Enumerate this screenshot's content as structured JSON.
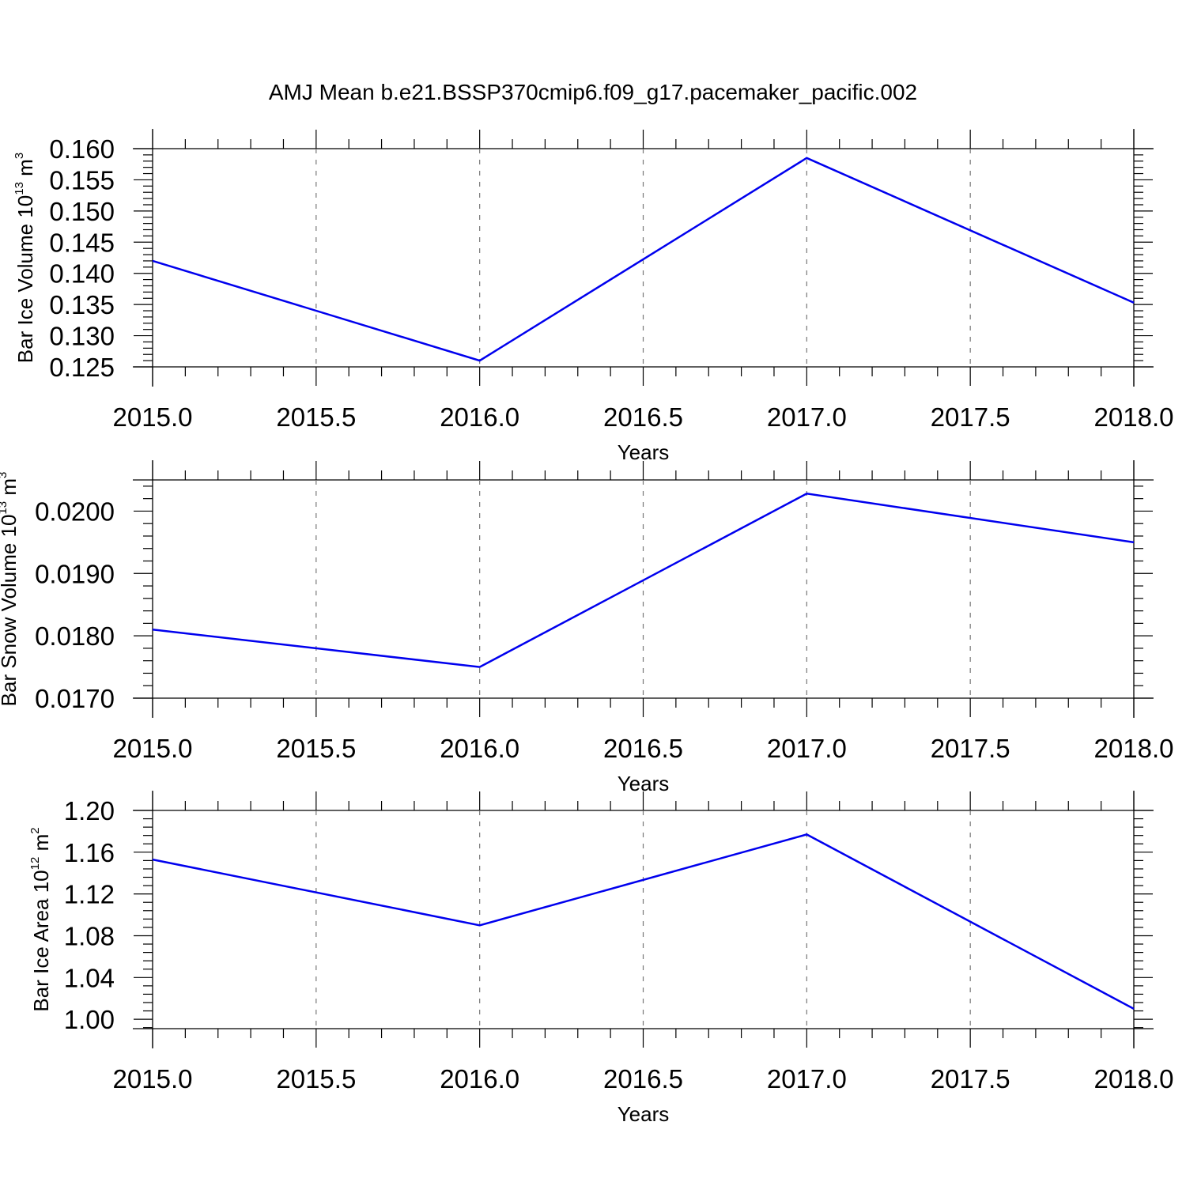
{
  "title": "AMJ Mean b.e21.BSSP370cmip6.f09_g17.pacemaker_pacific.002",
  "colors": {
    "series": "#0000ee",
    "grid": "#777777",
    "axis": "#000000"
  },
  "chart_data": [
    {
      "type": "line",
      "ylabel": "Bar Ice Volume 10",
      "ylabel_exp": "13",
      "ylabel_unit": " m",
      "ylabel_unit_exp": "3",
      "xlabel": "Years",
      "xlim": [
        2015.0,
        2018.0
      ],
      "ylim": [
        0.125,
        0.16
      ],
      "x_ticks": [
        "2015.0",
        "2015.5",
        "2016.0",
        "2016.5",
        "2017.0",
        "2017.5",
        "2018.0"
      ],
      "y_ticks": [
        "0.125",
        "0.130",
        "0.135",
        "0.140",
        "0.145",
        "0.150",
        "0.155",
        "0.160"
      ],
      "grid": "vertical-dashed",
      "series": [
        {
          "x": [
            2015,
            2016,
            2017,
            2018
          ],
          "y": [
            0.142,
            0.126,
            0.1585,
            0.1353
          ]
        }
      ]
    },
    {
      "type": "line",
      "ylabel": "Bar Snow Volume 10",
      "ylabel_exp": "13",
      "ylabel_unit": " m",
      "ylabel_unit_exp": "3",
      "xlabel": "Years",
      "xlim": [
        2015.0,
        2018.0
      ],
      "ylim": [
        0.017,
        0.0205
      ],
      "x_ticks": [
        "2015.0",
        "2015.5",
        "2016.0",
        "2016.5",
        "2017.0",
        "2017.5",
        "2018.0"
      ],
      "y_ticks": [
        "0.0170",
        "0.0180",
        "0.0190",
        "0.0200"
      ],
      "grid": "vertical-dashed",
      "series": [
        {
          "x": [
            2015,
            2016,
            2017,
            2018
          ],
          "y": [
            0.0181,
            0.0175,
            0.02028,
            0.0195
          ]
        }
      ]
    },
    {
      "type": "line",
      "ylabel": "Bar Ice Area 10",
      "ylabel_exp": "12",
      "ylabel_unit": " m",
      "ylabel_unit_exp": "2",
      "xlabel": "Years",
      "xlim": [
        2015.0,
        2018.0
      ],
      "ylim": [
        0.991,
        1.2
      ],
      "x_ticks": [
        "2015.0",
        "2015.5",
        "2016.0",
        "2016.5",
        "2017.0",
        "2017.5",
        "2018.0"
      ],
      "y_ticks": [
        "1.00",
        "1.04",
        "1.08",
        "1.12",
        "1.16",
        "1.20"
      ],
      "grid": "vertical-dashed",
      "series": [
        {
          "x": [
            2015,
            2016,
            2017,
            2018
          ],
          "y": [
            1.153,
            1.09,
            1.177,
            1.01
          ]
        }
      ]
    }
  ]
}
